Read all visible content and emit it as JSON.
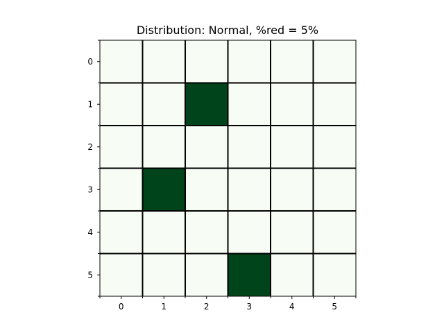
{
  "chart_data": {
    "type": "heatmap",
    "title": "Distribution: Normal, %red = 5%",
    "xlabel": "",
    "ylabel": "",
    "x_ticks": [
      "0",
      "1",
      "2",
      "3",
      "4",
      "5"
    ],
    "y_ticks": [
      "0",
      "1",
      "2",
      "3",
      "4",
      "5"
    ],
    "values": [
      [
        0,
        0,
        0,
        0,
        0,
        0
      ],
      [
        0,
        0,
        1,
        0,
        0,
        0
      ],
      [
        0,
        0,
        0,
        0,
        0,
        0
      ],
      [
        0,
        1,
        0,
        0,
        0,
        0
      ],
      [
        0,
        0,
        0,
        0,
        0,
        0
      ],
      [
        0,
        0,
        0,
        1,
        0,
        0
      ]
    ],
    "colormap": {
      "low": "#f7fcf5",
      "high": "#00441b"
    },
    "grid": true,
    "grid_color": "#000000"
  }
}
